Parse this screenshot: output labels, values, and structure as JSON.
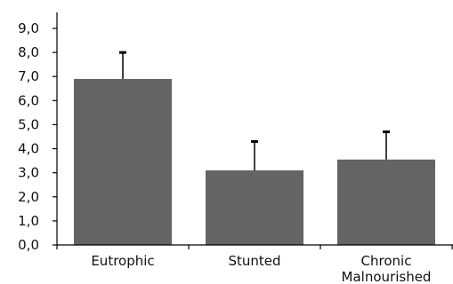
{
  "chart_data": {
    "type": "bar",
    "categories": [
      "Eutrophic",
      "Stunted",
      "Chronic Malnourished"
    ],
    "category_label_lines": [
      [
        "Eutrophic"
      ],
      [
        "Stunted"
      ],
      [
        "Chronic",
        "Malnourished"
      ]
    ],
    "values": [
      6.9,
      3.1,
      3.55
    ],
    "error_upper": [
      8.0,
      4.3,
      4.7
    ],
    "title": "",
    "xlabel": "",
    "ylabel": "",
    "ylim": [
      0,
      9
    ],
    "yticks": [
      "0,0",
      "1,0",
      "2,0",
      "3,0",
      "4,0",
      "5,0",
      "6,0",
      "7,0",
      "8,0",
      "9,0"
    ],
    "grid": false,
    "bar_color": "#646464",
    "axis_color": "#000000"
  }
}
